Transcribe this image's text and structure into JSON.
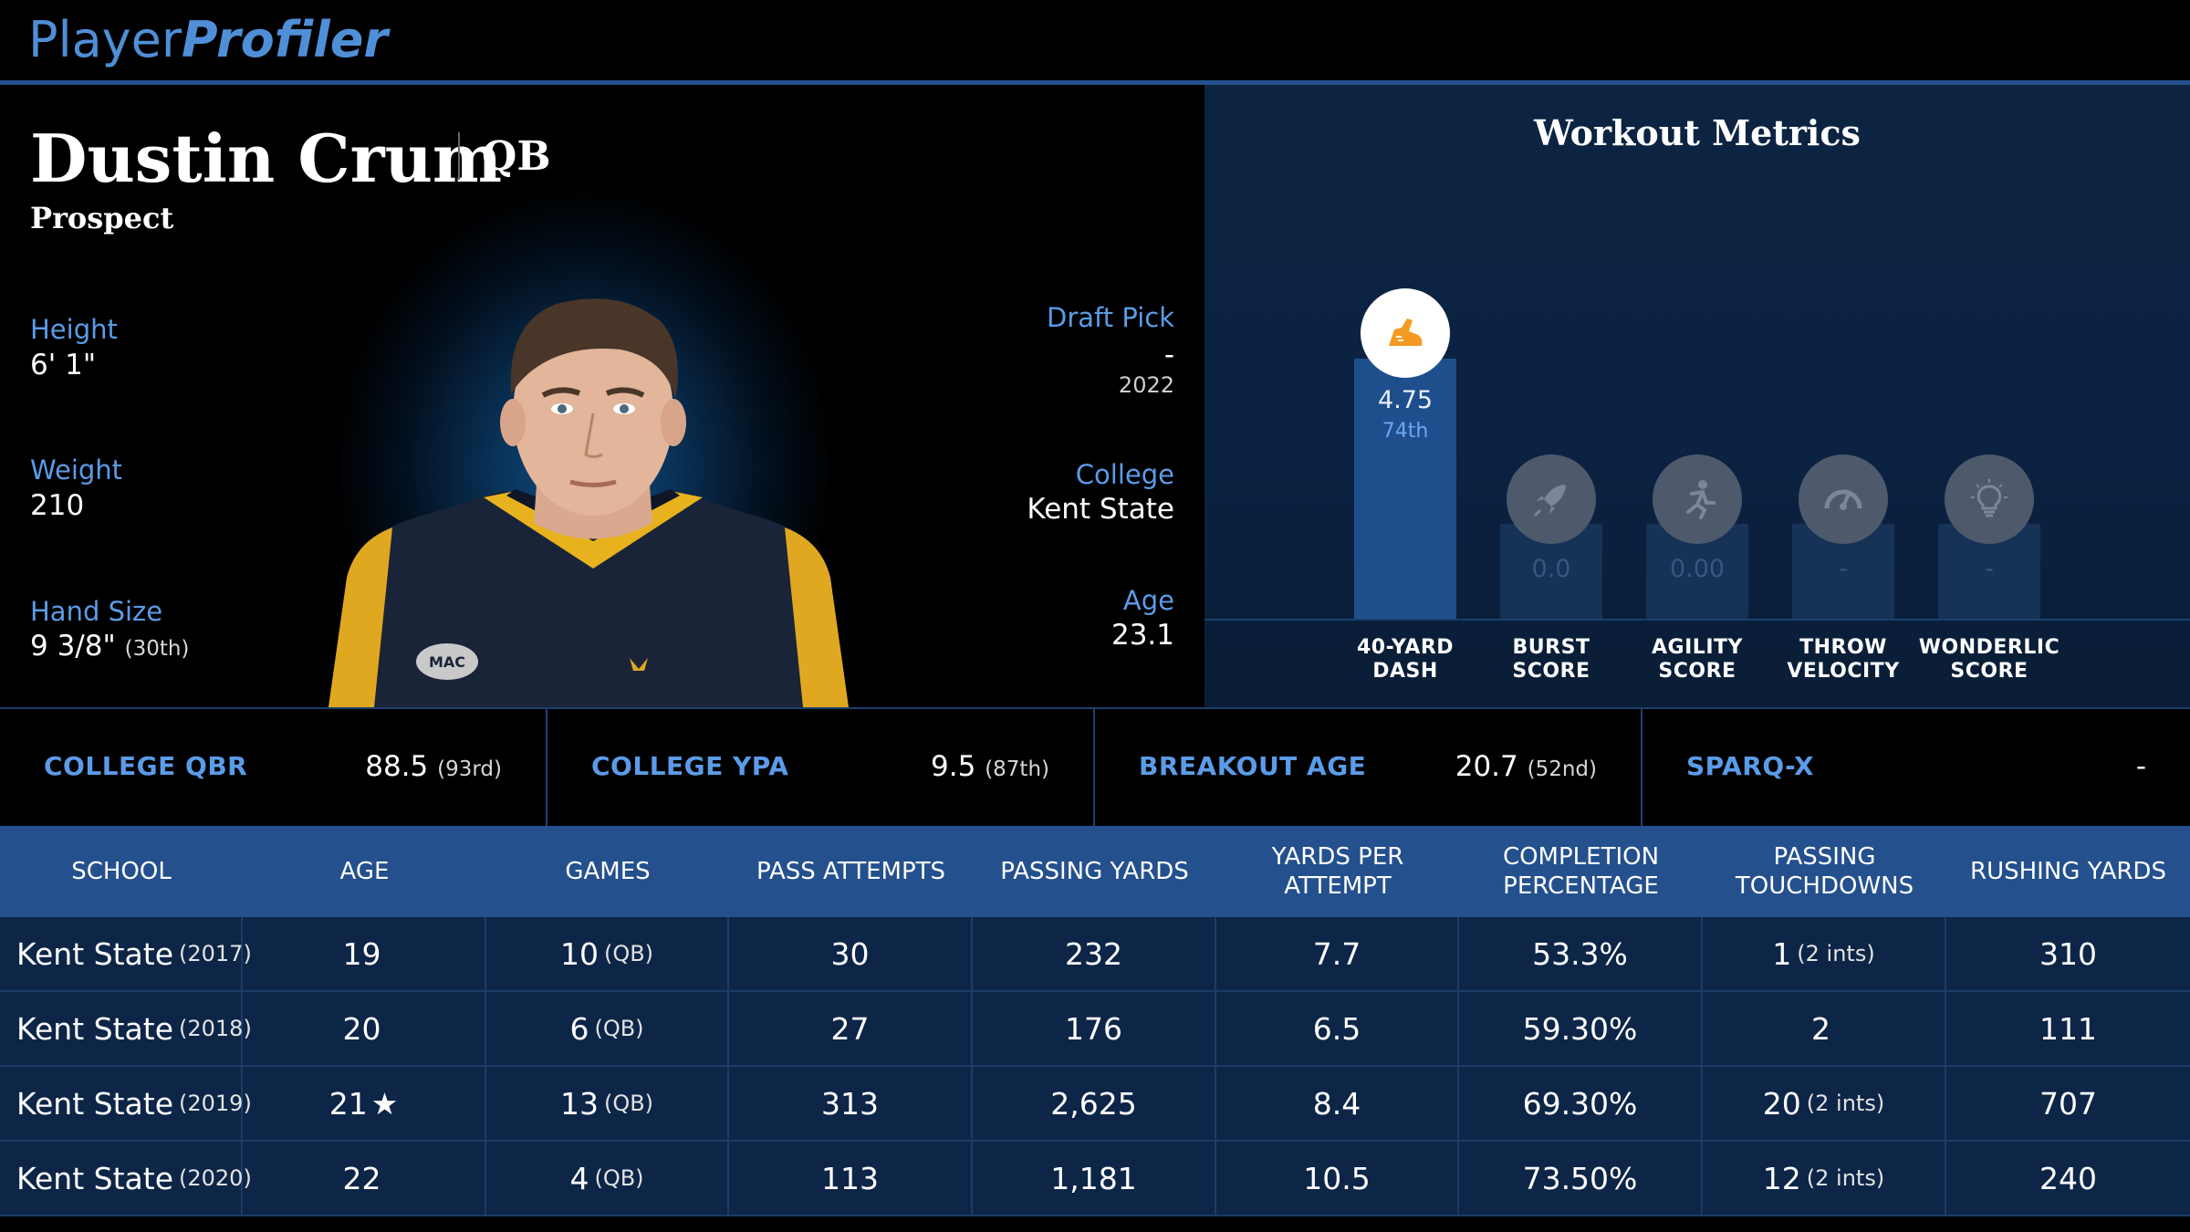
{
  "brand": {
    "part1": "Player",
    "part2": "Profiler"
  },
  "player": {
    "name": "Dustin Crum",
    "position": "QB",
    "status": "Prospect",
    "height_label": "Height",
    "height": "6' 1\"",
    "weight_label": "Weight",
    "weight": "210",
    "hand_label": "Hand Size",
    "hand": "9 3/8\"",
    "hand_pct": "(30th)",
    "draft_label": "Draft Pick",
    "draft": "-",
    "draft_year": "2022",
    "college_label": "College",
    "college": "Kent State",
    "age_label": "Age",
    "age": "23.1",
    "jersey_logo": "MAC"
  },
  "metrics": {
    "title": "Workout Metrics",
    "items": [
      {
        "label1": "40-YARD",
        "label2": "DASH",
        "value": "4.75",
        "pct": "74th",
        "fill": 0.74,
        "icon": "running-shoe-icon",
        "active": true
      },
      {
        "label1": "BURST",
        "label2": "SCORE",
        "value": "0.0",
        "pct": "",
        "fill": 0.0,
        "icon": "rocket-icon",
        "active": false
      },
      {
        "label1": "AGILITY",
        "label2": "SCORE",
        "value": "0.00",
        "pct": "",
        "fill": 0.0,
        "icon": "runner-icon",
        "active": false
      },
      {
        "label1": "THROW",
        "label2": "VELOCITY",
        "value": "-",
        "pct": "",
        "fill": 0.0,
        "icon": "speedometer-icon",
        "active": false
      },
      {
        "label1": "WONDERLIC",
        "label2": "SCORE",
        "value": "-",
        "pct": "",
        "fill": 0.0,
        "icon": "lightbulb-icon",
        "active": false
      }
    ]
  },
  "stats": [
    {
      "label": "COLLEGE QBR",
      "value": "88.5",
      "pct": "(93rd)"
    },
    {
      "label": "COLLEGE YPA",
      "value": "9.5",
      "pct": "(87th)"
    },
    {
      "label": "BREAKOUT AGE",
      "value": "20.7",
      "pct": "(52nd)"
    },
    {
      "label": "SPARQ-X",
      "value": "-",
      "pct": ""
    }
  ],
  "table": {
    "headers": [
      "SCHOOL",
      "AGE",
      "GAMES",
      "PASS ATTEMPTS",
      "PASSING YARDS",
      "YARDS PER ATTEMPT",
      "COMPLETION PERCENTAGE",
      "PASSING TOUCHDOWNS",
      "RUSHING YARDS"
    ],
    "rows": [
      {
        "school": "Kent State",
        "year": "(2017)",
        "age": "19",
        "age_star": "",
        "games": "10",
        "games_note": "(QB)",
        "att": "30",
        "yds": "232",
        "ypa": "7.7",
        "comp": "53.3%",
        "td": "1",
        "td_note": "(2 ints)",
        "rush": "310"
      },
      {
        "school": "Kent State",
        "year": "(2018)",
        "age": "20",
        "age_star": "",
        "games": "6",
        "games_note": "(QB)",
        "att": "27",
        "yds": "176",
        "ypa": "6.5",
        "comp": "59.30%",
        "td": "2",
        "td_note": "",
        "rush": "111"
      },
      {
        "school": "Kent State",
        "year": "(2019)",
        "age": "21",
        "age_star": "★",
        "games": "13",
        "games_note": "(QB)",
        "att": "313",
        "yds": "2,625",
        "ypa": "8.4",
        "comp": "69.30%",
        "td": "20",
        "td_note": "(2 ints)",
        "rush": "707"
      },
      {
        "school": "Kent State",
        "year": "(2020)",
        "age": "22",
        "age_star": "",
        "games": "4",
        "games_note": "(QB)",
        "att": "113",
        "yds": "1,181",
        "ypa": "10.5",
        "comp": "73.50%",
        "td": "12",
        "td_note": "(2 ints)",
        "rush": "240"
      }
    ]
  }
}
